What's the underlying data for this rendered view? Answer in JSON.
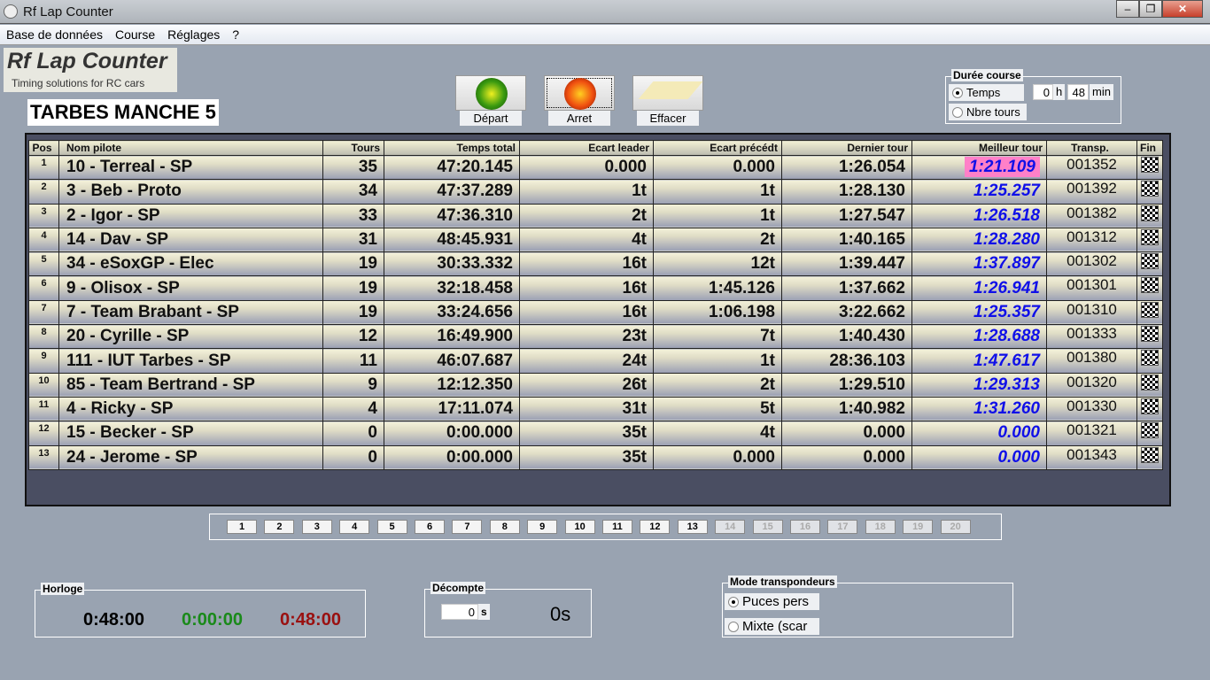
{
  "window": {
    "title": "Rf Lap Counter"
  },
  "menu": [
    "Base de données",
    "Course",
    "Réglages",
    "?"
  ],
  "logo": {
    "title": "Rf Lap Counter",
    "tagline": "Timing solutions for RC cars"
  },
  "race_name": "TARBES MANCHE 5",
  "buttons": {
    "start": "Départ",
    "stop": "Arret",
    "clear": "Effacer"
  },
  "duration": {
    "legend": "Durée course",
    "time_label": "Temps",
    "laps_label": "Nbre tours",
    "hours": "0",
    "h": "h",
    "minutes": "48",
    "min": "min",
    "selected": "Temps"
  },
  "table": {
    "headers": [
      "Pos",
      "Nom pilote",
      "Tours",
      "Temps total",
      "Ecart leader",
      "Ecart précédt",
      "Dernier tour",
      "Meilleur tour",
      "Transp.",
      "Fin"
    ],
    "rows": [
      [
        "1",
        "10 - Terreal - SP",
        "35",
        "47:20.145",
        "0.000",
        "0.000",
        "1:26.054",
        "1:21.109",
        "001352"
      ],
      [
        "2",
        "3 - Beb - Proto",
        "34",
        "47:37.289",
        "1t",
        "1t",
        "1:28.130",
        "1:25.257",
        "001392"
      ],
      [
        "3",
        "2 - Igor - SP",
        "33",
        "47:36.310",
        "2t",
        "1t",
        "1:27.547",
        "1:26.518",
        "001382"
      ],
      [
        "4",
        "14 - Dav - SP",
        "31",
        "48:45.931",
        "4t",
        "2t",
        "1:40.165",
        "1:28.280",
        "001312"
      ],
      [
        "5",
        "34 - eSoxGP - Elec",
        "19",
        "30:33.332",
        "16t",
        "12t",
        "1:39.447",
        "1:37.897",
        "001302"
      ],
      [
        "6",
        "9 - Olisox - SP",
        "19",
        "32:18.458",
        "16t",
        "1:45.126",
        "1:37.662",
        "1:26.941",
        "001301"
      ],
      [
        "7",
        "7 - Team Brabant - SP",
        "19",
        "33:24.656",
        "16t",
        "1:06.198",
        "3:22.662",
        "1:25.357",
        "001310"
      ],
      [
        "8",
        "20 - Cyrille - SP",
        "12",
        "16:49.900",
        "23t",
        "7t",
        "1:40.430",
        "1:28.688",
        "001333"
      ],
      [
        "9",
        "111 - IUT Tarbes - SP",
        "11",
        "46:07.687",
        "24t",
        "1t",
        "28:36.103",
        "1:47.617",
        "001380"
      ],
      [
        "10",
        "85 - Team Bertrand - SP",
        "9",
        "12:12.350",
        "26t",
        "2t",
        "1:29.510",
        "1:29.313",
        "001320"
      ],
      [
        "11",
        "4 - Ricky - SP",
        "4",
        "17:11.074",
        "31t",
        "5t",
        "1:40.982",
        "1:31.260",
        "001330"
      ],
      [
        "12",
        "15 - Becker - SP",
        "0",
        "0:00.000",
        "35t",
        "4t",
        "0.000",
        "0.000",
        "001321"
      ],
      [
        "13",
        "24 - Jerome - SP",
        "0",
        "0:00.000",
        "35t",
        "0.000",
        "0.000",
        "0.000",
        "001343"
      ]
    ],
    "best_highlight_color": "#ff80c8",
    "best_text_color": "#1010e8"
  },
  "pages": {
    "items": [
      "1",
      "2",
      "3",
      "4",
      "5",
      "6",
      "7",
      "8",
      "9",
      "10",
      "11",
      "12",
      "13",
      "14",
      "15",
      "16",
      "17",
      "18",
      "19",
      "20"
    ],
    "enabled_count": 13
  },
  "clock": {
    "legend": "Horloge",
    "elapsed": "0:48:00",
    "green": "0:00:00",
    "remaining": "0:48:00"
  },
  "countdown": {
    "legend": "Décompte",
    "value": "0",
    "unit": "s",
    "display": "0s"
  },
  "transponder": {
    "legend": "Mode transpondeurs",
    "opt1": "Puces pers",
    "opt2": "Mixte (scar",
    "selected": "Puces pers"
  }
}
